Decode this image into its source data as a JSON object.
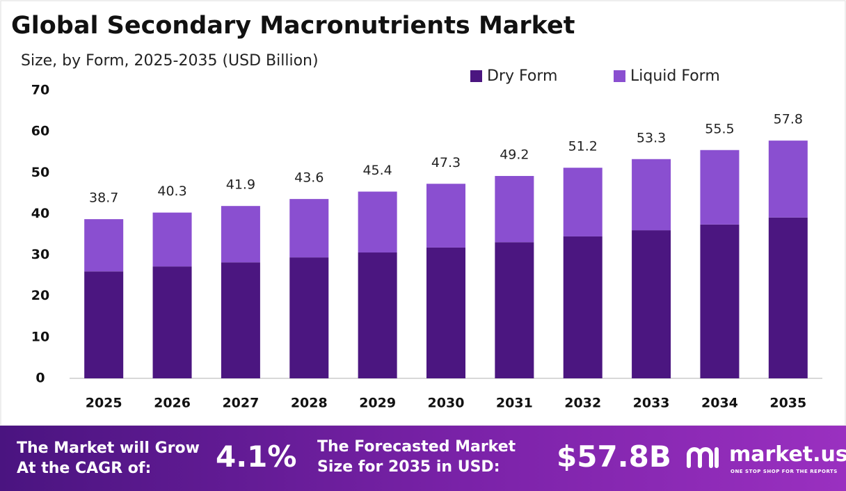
{
  "chart_data": {
    "type": "stacked_bar",
    "title": "Global Secondary Macronutrients Market",
    "subtitle": "Size, by Form, 2025-2035 (USD Billion)",
    "categories": [
      "2025",
      "2026",
      "2027",
      "2028",
      "2029",
      "2030",
      "2031",
      "2032",
      "2033",
      "2034",
      "2035"
    ],
    "series": [
      {
        "name": "Dry Form",
        "color": "#4b1680",
        "values": [
          26.0,
          27.2,
          28.2,
          29.4,
          30.6,
          31.8,
          33.1,
          34.5,
          36.0,
          37.4,
          39.1
        ]
      },
      {
        "name": "Liquid Form",
        "color": "#8a4fd0",
        "values": [
          12.7,
          13.1,
          13.7,
          14.2,
          14.8,
          15.5,
          16.1,
          16.7,
          17.3,
          18.1,
          18.7
        ]
      }
    ],
    "totals": [
      38.7,
      40.3,
      41.9,
      43.6,
      45.4,
      47.3,
      49.2,
      51.2,
      53.3,
      55.5,
      57.8
    ],
    "ylim": [
      0,
      70
    ],
    "yticks": [
      0,
      10,
      20,
      30,
      40,
      50,
      60,
      70
    ],
    "grid": false,
    "legend": "top-right"
  },
  "footer": {
    "cagr_text": [
      "The Market will Grow",
      "At the CAGR of:"
    ],
    "cagr_value": "4.1%",
    "forecast_text": [
      "The Forecasted Market",
      "Size for 2035 in USD:"
    ],
    "forecast_value": "$57.8B",
    "brand": "market.us",
    "tagline": "ONE STOP SHOP FOR THE REPORTS"
  }
}
